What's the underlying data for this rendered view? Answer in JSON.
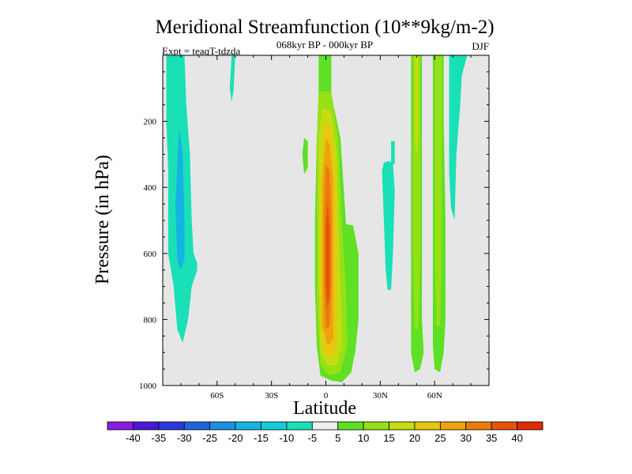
{
  "chart_data": {
    "type": "contour",
    "title": "Meridional Streamfunction (10**9kg/m-2)",
    "subtitle": "068kyr BP - 000kyr BP",
    "left_label": "Expt = teaqT-tdzda",
    "right_label": "DJF",
    "xlabel": "Latitude",
    "ylabel": "Pressure (in hPa)",
    "xlim": [
      -90,
      90
    ],
    "ylim": [
      1000,
      0
    ],
    "x_ticks": [
      {
        "value": -60,
        "label": "60S"
      },
      {
        "value": -30,
        "label": "30S"
      },
      {
        "value": 0,
        "label": "0"
      },
      {
        "value": 30,
        "label": "30N"
      },
      {
        "value": 60,
        "label": "60N"
      }
    ],
    "y_ticks": [
      {
        "value": 200,
        "label": "200"
      },
      {
        "value": 400,
        "label": "400"
      },
      {
        "value": 600,
        "label": "600"
      },
      {
        "value": 800,
        "label": "800"
      },
      {
        "value": 1000,
        "label": "1000"
      }
    ],
    "background_color": "#e6e6e6",
    "colorbar": {
      "levels": [
        "-40",
        "-35",
        "-30",
        "-25",
        "-20",
        "-15",
        "-10",
        "-5",
        "5",
        "10",
        "15",
        "20",
        "25",
        "30",
        "35",
        "40"
      ],
      "colors": [
        "#8a1fe0",
        "#4a19d6",
        "#2a39d9",
        "#1f66dc",
        "#1c8fe0",
        "#16b2e4",
        "#13cdda",
        "#19e0b6",
        "#efefef",
        "#5ee024",
        "#96e016",
        "#c4dd12",
        "#e6c80f",
        "#eda20e",
        "#ea7b0c",
        "#e65209",
        "#e02a06"
      ]
    },
    "regions": [
      {
        "name": "southern-negative-cell",
        "color": "#19e0b6",
        "points": [
          [
            -88,
            0
          ],
          [
            -78,
            0
          ],
          [
            -77,
            150
          ],
          [
            -75,
            300
          ],
          [
            -74,
            500
          ],
          [
            -73,
            600
          ],
          [
            -71,
            630
          ],
          [
            -71,
            650
          ],
          [
            -74,
            700
          ],
          [
            -76,
            800
          ],
          [
            -79,
            870
          ],
          [
            -82,
            830
          ],
          [
            -84,
            700
          ],
          [
            -87,
            600
          ],
          [
            -87,
            350
          ],
          [
            -88,
            200
          ]
        ]
      },
      {
        "name": "southern-core",
        "color": "#16b2e4",
        "points": [
          [
            -81,
            220
          ],
          [
            -79,
            300
          ],
          [
            -78,
            500
          ],
          [
            -78,
            620
          ],
          [
            -80,
            650
          ],
          [
            -82,
            620
          ],
          [
            -83,
            450
          ]
        ]
      },
      {
        "name": "upper-small-negative",
        "color": "#19e0b6",
        "points": [
          [
            -52,
            0
          ],
          [
            -50,
            0
          ],
          [
            -51,
            110
          ],
          [
            -52,
            140
          ],
          [
            -53,
            100
          ]
        ]
      },
      {
        "name": "small-positive-30s",
        "color": "#5ee024",
        "points": [
          [
            -12,
            250
          ],
          [
            -10,
            260
          ],
          [
            -10,
            340
          ],
          [
            -12,
            360
          ],
          [
            -13,
            300
          ]
        ]
      },
      {
        "name": "equatorial-positive-5",
        "color": "#5ee024",
        "points": [
          [
            -4,
            0
          ],
          [
            3,
            0
          ],
          [
            3,
            120
          ],
          [
            8,
            250
          ],
          [
            11,
            500
          ],
          [
            13,
            700
          ],
          [
            16,
            900
          ],
          [
            14,
            960
          ],
          [
            9,
            990
          ],
          [
            3,
            985
          ],
          [
            -3,
            970
          ],
          [
            -5,
            880
          ],
          [
            -6,
            700
          ],
          [
            -6,
            500
          ],
          [
            -5,
            250
          ],
          [
            -4,
            160
          ]
        ]
      },
      {
        "name": "equatorial-positive-shoulder",
        "color": "#5ee024",
        "points": [
          [
            10,
            510
          ],
          [
            15,
            515
          ],
          [
            18,
            600
          ],
          [
            18,
            800
          ],
          [
            16,
            910
          ],
          [
            12,
            860
          ]
        ]
      },
      {
        "name": "equatorial-positive-10",
        "color": "#96e016",
        "points": [
          [
            -4,
            110
          ],
          [
            3,
            110
          ],
          [
            7,
            260
          ],
          [
            9,
            520
          ],
          [
            11,
            700
          ],
          [
            12,
            880
          ],
          [
            8,
            960
          ],
          [
            2,
            970
          ],
          [
            -3,
            940
          ],
          [
            -5,
            780
          ],
          [
            -5,
            500
          ],
          [
            -5,
            260
          ]
        ]
      },
      {
        "name": "equatorial-positive-15",
        "color": "#c4dd12",
        "points": [
          [
            -2,
            160
          ],
          [
            3,
            170
          ],
          [
            6,
            300
          ],
          [
            7,
            520
          ],
          [
            8,
            700
          ],
          [
            9,
            880
          ],
          [
            6,
            940
          ],
          [
            1,
            940
          ],
          [
            -3,
            900
          ],
          [
            -4,
            700
          ],
          [
            -4,
            480
          ],
          [
            -4,
            260
          ]
        ]
      },
      {
        "name": "equatorial-positive-20",
        "color": "#e6c80f",
        "points": [
          [
            -1,
            200
          ],
          [
            3,
            220
          ],
          [
            5,
            320
          ],
          [
            6,
            520
          ],
          [
            6,
            720
          ],
          [
            6,
            880
          ],
          [
            3,
            920
          ],
          [
            -1,
            900
          ],
          [
            -3,
            820
          ],
          [
            -3,
            600
          ],
          [
            -3,
            380
          ]
        ]
      },
      {
        "name": "equatorial-positive-25",
        "color": "#eda20e",
        "points": [
          [
            0,
            250
          ],
          [
            2,
            270
          ],
          [
            4,
            380
          ],
          [
            4,
            560
          ],
          [
            4,
            760
          ],
          [
            4,
            860
          ],
          [
            1,
            880
          ],
          [
            -2,
            820
          ],
          [
            -2,
            600
          ],
          [
            -2,
            380
          ]
        ]
      },
      {
        "name": "equatorial-positive-30",
        "color": "#ea7b0c",
        "points": [
          [
            0,
            330
          ],
          [
            2,
            350
          ],
          [
            3,
            480
          ],
          [
            3,
            700
          ],
          [
            2,
            820
          ],
          [
            0,
            830
          ],
          [
            -1,
            700
          ],
          [
            -1,
            480
          ]
        ]
      },
      {
        "name": "equatorial-positive-35",
        "color": "#e65209",
        "points": [
          [
            1,
            440
          ],
          [
            2,
            520
          ],
          [
            2,
            720
          ],
          [
            1,
            770
          ],
          [
            0,
            700
          ],
          [
            0,
            520
          ]
        ]
      },
      {
        "name": "northern-negative-30n",
        "color": "#19e0b6",
        "points": [
          [
            32,
            325
          ],
          [
            35,
            320
          ],
          [
            37,
            330
          ],
          [
            38,
            410
          ],
          [
            37,
            600
          ],
          [
            36,
            710
          ],
          [
            34,
            710
          ],
          [
            33,
            650
          ],
          [
            32,
            500
          ],
          [
            31,
            350
          ]
        ]
      },
      {
        "name": "northern-negative-small",
        "color": "#19e0b6",
        "points": [
          [
            36,
            260
          ],
          [
            38,
            260
          ],
          [
            38,
            330
          ],
          [
            36,
            330
          ]
        ]
      },
      {
        "name": "northern-positive-band-a",
        "color": "#5ee024",
        "points": [
          [
            47,
            0
          ],
          [
            53,
            0
          ],
          [
            53,
            200
          ],
          [
            53,
            500
          ],
          [
            53,
            800
          ],
          [
            54,
            900
          ],
          [
            52,
            950
          ],
          [
            49,
            960
          ],
          [
            47,
            900
          ],
          [
            47,
            700
          ],
          [
            47,
            400
          ],
          [
            47,
            150
          ]
        ]
      },
      {
        "name": "northern-positive-band-b",
        "color": "#5ee024",
        "points": [
          [
            59,
            0
          ],
          [
            65,
            0
          ],
          [
            65,
            200
          ],
          [
            66,
            500
          ],
          [
            66,
            800
          ],
          [
            65,
            900
          ],
          [
            63,
            960
          ],
          [
            60,
            950
          ],
          [
            59,
            880
          ],
          [
            59,
            700
          ],
          [
            59,
            400
          ],
          [
            59,
            150
          ]
        ]
      },
      {
        "name": "northern-positive-band-a-core",
        "color": "#96e016",
        "points": [
          [
            48,
            0
          ],
          [
            52,
            0
          ],
          [
            52,
            300
          ],
          [
            52,
            600
          ],
          [
            51,
            830
          ],
          [
            49,
            830
          ],
          [
            48,
            600
          ],
          [
            48,
            300
          ]
        ]
      },
      {
        "name": "northern-positive-band-b-core",
        "color": "#96e016",
        "points": [
          [
            60,
            0
          ],
          [
            64,
            0
          ],
          [
            64,
            300
          ],
          [
            64,
            600
          ],
          [
            63,
            820
          ],
          [
            61,
            820
          ],
          [
            60,
            600
          ],
          [
            60,
            300
          ]
        ]
      },
      {
        "name": "northern-positive-band-a-inner",
        "color": "#c4dd12",
        "points": [
          [
            49,
            0
          ],
          [
            51,
            0
          ],
          [
            51,
            250
          ],
          [
            50,
            300
          ],
          [
            49,
            250
          ]
        ]
      },
      {
        "name": "northern-negative-70n",
        "color": "#19e0b6",
        "points": [
          [
            68,
            0
          ],
          [
            78,
            0
          ],
          [
            75,
            60
          ],
          [
            74,
            160
          ],
          [
            72,
            300
          ],
          [
            71,
            500
          ],
          [
            69,
            460
          ],
          [
            68,
            350
          ],
          [
            68,
            150
          ]
        ]
      }
    ]
  }
}
